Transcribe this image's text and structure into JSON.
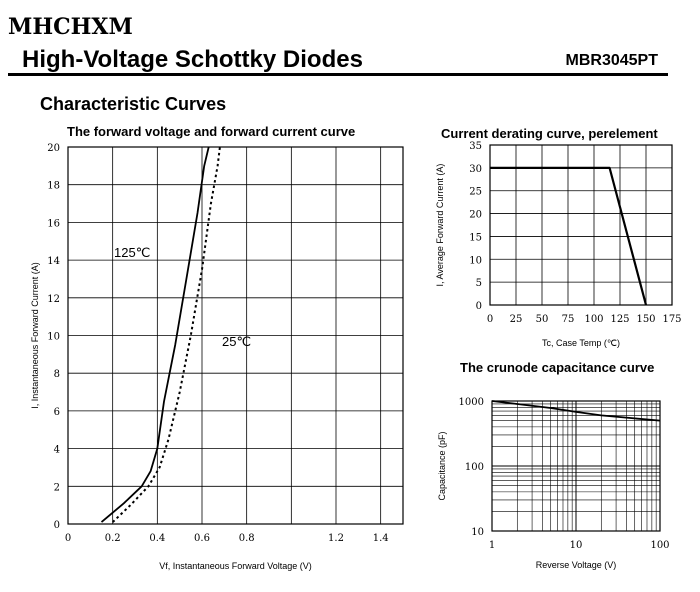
{
  "header": {
    "brand": "MHCHXM",
    "title": "High-Voltage Schottky Diodes",
    "part_number": "MBR3045PT"
  },
  "section_title": "Characteristic Curves",
  "chart_data": [
    {
      "type": "line",
      "title": "The forward voltage and forward current curve",
      "xlabel": "Vf, Instantaneous Forward Voltage (V)",
      "ylabel": "I, Instantaneous Forward Current (A)",
      "xlim": [
        0,
        1.5
      ],
      "ylim": [
        0,
        20
      ],
      "x_ticks": [
        "0",
        "0.2",
        "0.4",
        "0.6",
        "0.8",
        "1.2",
        "1.4"
      ],
      "x_tick_values": [
        0,
        0.2,
        0.4,
        0.6,
        0.8,
        1.2,
        1.4
      ],
      "y_ticks": [
        "0",
        "2",
        "4",
        "6",
        "8",
        "10",
        "12",
        "14",
        "16",
        "18",
        "20"
      ],
      "y_tick_values": [
        0,
        2,
        4,
        6,
        8,
        10,
        12,
        14,
        16,
        18,
        20
      ],
      "grid": true,
      "series": [
        {
          "name": "125℃",
          "style": "solid",
          "points": [
            [
              0.15,
              0.1
            ],
            [
              0.25,
              1.1
            ],
            [
              0.33,
              2.0
            ],
            [
              0.37,
              2.8
            ],
            [
              0.4,
              4.0
            ],
            [
              0.43,
              6.5
            ],
            [
              0.48,
              9.5
            ],
            [
              0.53,
              13.0
            ],
            [
              0.58,
              16.5
            ],
            [
              0.61,
              19.0
            ],
            [
              0.63,
              20.0
            ]
          ]
        },
        {
          "name": "25℃",
          "style": "dashed",
          "points": [
            [
              0.2,
              0.1
            ],
            [
              0.28,
              1.0
            ],
            [
              0.36,
              2.0
            ],
            [
              0.41,
              3.0
            ],
            [
              0.45,
              4.5
            ],
            [
              0.5,
              7.0
            ],
            [
              0.55,
              10.0
            ],
            [
              0.6,
              13.5
            ],
            [
              0.64,
              17.0
            ],
            [
              0.67,
              19.0
            ],
            [
              0.68,
              20.0
            ]
          ]
        }
      ]
    },
    {
      "type": "line",
      "title": "Current derating curve, perelement",
      "xlabel": "Tc, Case Temp (℃)",
      "ylabel": "I, Average Forward Current (A)",
      "xlim": [
        0,
        175
      ],
      "ylim": [
        0,
        35
      ],
      "x_ticks": [
        "0",
        "25",
        "50",
        "75",
        "100",
        "125",
        "150",
        "175"
      ],
      "x_tick_values": [
        0,
        25,
        50,
        75,
        100,
        125,
        150,
        175
      ],
      "y_ticks": [
        "0",
        "5",
        "10",
        "15",
        "20",
        "25",
        "30",
        "35"
      ],
      "y_tick_values": [
        0,
        5,
        10,
        15,
        20,
        25,
        30,
        35
      ],
      "grid": true,
      "series": [
        {
          "style": "solid",
          "points": [
            [
              0,
              30
            ],
            [
              115,
              30
            ],
            [
              150,
              0
            ]
          ]
        }
      ]
    },
    {
      "type": "line",
      "title": "The crunode capacitance curve",
      "xlabel": "Reverse Voltage (V)",
      "ylabel": "Capacitance (pF)",
      "xscale": "log",
      "yscale": "log",
      "xlim": [
        1,
        100
      ],
      "ylim": [
        10,
        1000
      ],
      "x_ticks": [
        "1",
        "10",
        "100"
      ],
      "x_tick_values": [
        1,
        10,
        100
      ],
      "y_ticks": [
        "10",
        "100",
        "1000"
      ],
      "y_tick_values": [
        10,
        100,
        1000
      ],
      "grid": true,
      "series": [
        {
          "style": "solid",
          "points": [
            [
              1,
              1000
            ],
            [
              2,
              900
            ],
            [
              5,
              780
            ],
            [
              10,
              680
            ],
            [
              20,
              600
            ],
            [
              50,
              540
            ],
            [
              100,
              500
            ]
          ]
        }
      ]
    }
  ]
}
